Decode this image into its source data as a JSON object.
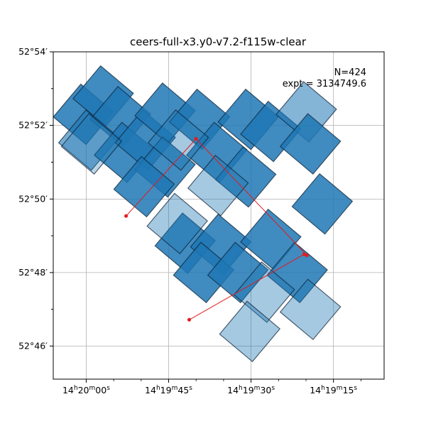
{
  "chart_data": {
    "type": "scatter",
    "title": "ceers-full-x3.y0-v7.2-f115w-clear",
    "annotation_lines": [
      "N=424",
      "expt = 3134749.6"
    ],
    "grid": true,
    "x_ticks": [
      {
        "deg": 215.0,
        "label_main": "14",
        "parts": [
          "h",
          "20",
          "m",
          "00",
          "s"
        ]
      },
      {
        "deg": 214.9375,
        "label_main": "14",
        "parts": [
          "h",
          "19",
          "m",
          "45",
          "s"
        ]
      },
      {
        "deg": 214.875,
        "label_main": "14",
        "parts": [
          "h",
          "19",
          "m",
          "30",
          "s"
        ]
      },
      {
        "deg": 214.8125,
        "label_main": "14",
        "parts": [
          "h",
          "19",
          "m",
          "15",
          "s"
        ]
      }
    ],
    "y_ticks": [
      {
        "deg": 52.9,
        "label": "52°54′"
      },
      {
        "deg": 52.8667,
        "label": "52°52′"
      },
      {
        "deg": 52.8333,
        "label": "52°50′"
      },
      {
        "deg": 52.8,
        "label": "52°48′"
      },
      {
        "deg": 52.7667,
        "label": "52°46′"
      }
    ],
    "xlim_ra_deg": [
      215.025,
      214.7741
    ],
    "ylim_dec_deg": [
      52.7517,
      52.9
    ],
    "footprint_color": "#1f77b4",
    "footprints": [
      {
        "ra": 215.0021,
        "dec": 52.8717,
        "alpha": 0.85
      },
      {
        "ra": 214.9871,
        "dec": 52.88,
        "alpha": 0.85
      },
      {
        "ra": 214.974,
        "dec": 52.8706,
        "alpha": 0.85
      },
      {
        "ra": 214.9981,
        "dec": 52.86,
        "alpha": 0.6
      },
      {
        "ra": 214.971,
        "dec": 52.8544,
        "alpha": 0.85
      },
      {
        "ra": 214.9552,
        "dec": 52.86,
        "alpha": 0.85
      },
      {
        "ra": 214.9402,
        "dec": 52.8722,
        "alpha": 0.85
      },
      {
        "ra": 214.9402,
        "dec": 52.8478,
        "alpha": 0.85
      },
      {
        "ra": 214.9562,
        "dec": 52.8389,
        "alpha": 0.85
      },
      {
        "ra": 214.914,
        "dec": 52.8694,
        "alpha": 0.85
      },
      {
        "ra": 214.901,
        "dec": 52.8544,
        "alpha": 0.85
      },
      {
        "ra": 214.9302,
        "dec": 52.86,
        "alpha": 0.4
      },
      {
        "ra": 214.8771,
        "dec": 52.8694,
        "alpha": 0.85
      },
      {
        "ra": 214.86,
        "dec": 52.8639,
        "alpha": 0.85
      },
      {
        "ra": 214.8331,
        "dec": 52.8728,
        "alpha": 0.55
      },
      {
        "ra": 214.83,
        "dec": 52.8583,
        "alpha": 0.85
      },
      {
        "ra": 214.879,
        "dec": 52.8433,
        "alpha": 0.85
      },
      {
        "ra": 214.9,
        "dec": 52.8394,
        "alpha": 0.4
      },
      {
        "ra": 214.821,
        "dec": 52.8311,
        "alpha": 0.85
      },
      {
        "ra": 214.925,
        "dec": 52.8133,
        "alpha": 0.85
      },
      {
        "ra": 214.898,
        "dec": 52.8128,
        "alpha": 0.85
      },
      {
        "ra": 214.911,
        "dec": 52.8,
        "alpha": 0.85
      },
      {
        "ra": 214.885,
        "dec": 52.8,
        "alpha": 0.85
      },
      {
        "ra": 214.86,
        "dec": 52.815,
        "alpha": 0.85
      },
      {
        "ra": 214.84,
        "dec": 52.8,
        "alpha": 0.85
      },
      {
        "ra": 214.865,
        "dec": 52.7911,
        "alpha": 0.4
      },
      {
        "ra": 214.83,
        "dec": 52.7833,
        "alpha": 0.4
      },
      {
        "ra": 214.876,
        "dec": 52.7733,
        "alpha": 0.4
      },
      {
        "ra": 214.931,
        "dec": 52.8222,
        "alpha": 0.4
      },
      {
        "ra": 214.996,
        "dec": 52.8583,
        "alpha": 0.3
      }
    ],
    "lines": [
      [
        {
          "ra": 214.9698,
          "dec": 52.8256
        },
        {
          "ra": 214.9167,
          "dec": 52.8606
        },
        {
          "ra": 214.8327,
          "dec": 52.8078
        }
      ],
      [
        {
          "ra": 214.9219,
          "dec": 52.7786
        },
        {
          "ra": 214.8347,
          "dec": 52.8083
        }
      ]
    ],
    "line_color": "#e41a1c",
    "footprint_size_deg": 0.0194
  }
}
